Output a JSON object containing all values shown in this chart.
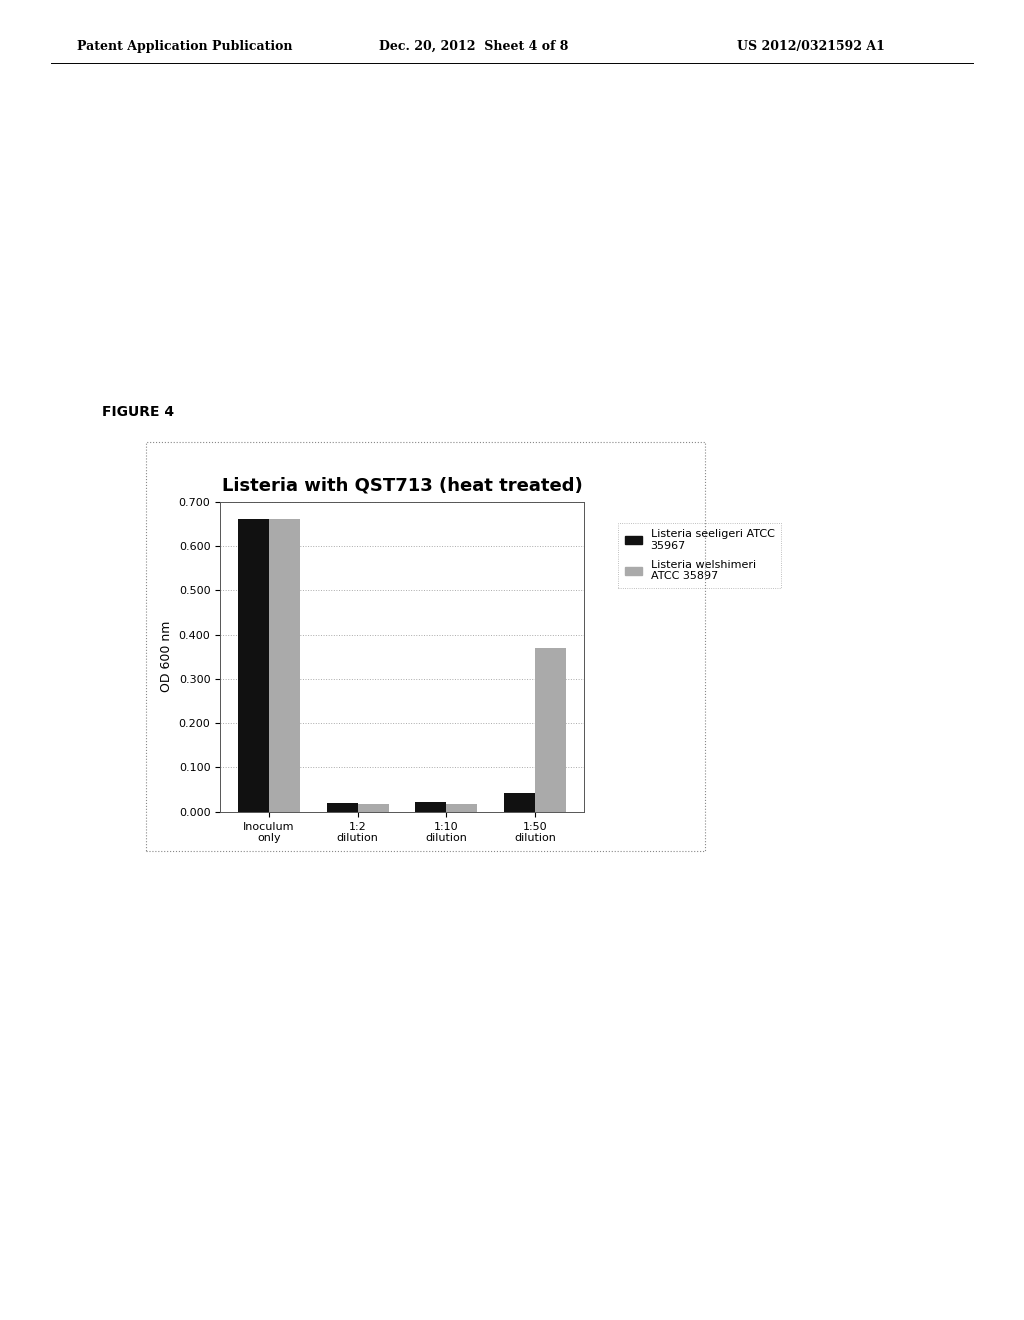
{
  "title": "Listeria with QST713 (heat treated)",
  "ylabel": "OD 600 nm",
  "categories": [
    "Inoculum\nonly",
    "1:2\ndilution",
    "1:10\ndilution",
    "1:50\ndilution"
  ],
  "series1_label": "Listeria seeligeri ATCC\n35967",
  "series2_label": "Listeria welshimeri\nATCC 35897",
  "series1_color": "#111111",
  "series2_color": "#aaaaaa",
  "series1_values": [
    0.66,
    0.02,
    0.022,
    0.042
  ],
  "series2_values": [
    0.66,
    0.018,
    0.018,
    0.37
  ],
  "ylim": [
    0.0,
    0.7
  ],
  "yticks": [
    0.0,
    0.1,
    0.2,
    0.3,
    0.4,
    0.5,
    0.6,
    0.7
  ],
  "background_color": "#ffffff",
  "plot_bg_color": "#ffffff",
  "header_left": "Patent Application Publication",
  "header_mid": "Dec. 20, 2012  Sheet 4 of 8",
  "header_right": "US 2012/0321592 A1",
  "figure_label": "FIGURE 4",
  "bar_width": 0.35,
  "title_fontsize": 13,
  "axis_fontsize": 9,
  "tick_fontsize": 8,
  "legend_fontsize": 8
}
